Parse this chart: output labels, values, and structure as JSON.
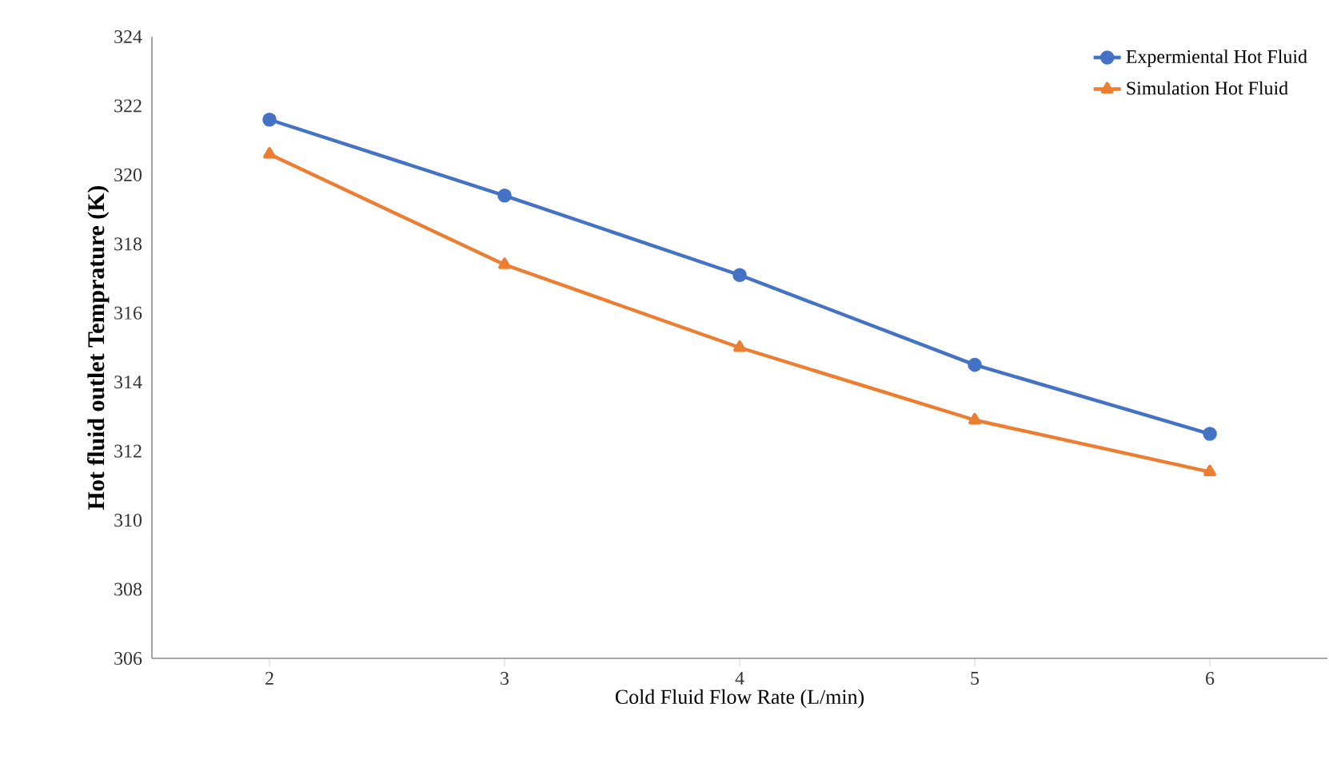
{
  "chart_data": {
    "type": "line",
    "xlabel": "Cold Fluid Flow Rate (L/min)",
    "ylabel": "Hot fluid outlet  Temprature  (K)",
    "x": [
      2,
      3,
      4,
      5,
      6
    ],
    "xlim": [
      1.5,
      6.5
    ],
    "xticks": [
      2,
      3,
      4,
      5,
      6
    ],
    "ylim": [
      306,
      324
    ],
    "yticks": [
      306,
      308,
      310,
      312,
      314,
      316,
      318,
      320,
      322,
      324
    ],
    "grid": false,
    "legend": "top right",
    "line_style": "solid",
    "series": [
      {
        "name": "Expermiental Hot Fluid",
        "color": "#4472c4",
        "marker": "circle",
        "values": [
          321.6,
          319.4,
          317.1,
          314.5,
          312.5
        ]
      },
      {
        "name": "Simulation Hot Fluid",
        "color": "#ed7d31",
        "marker": "triangle",
        "values": [
          320.6,
          317.4,
          315.0,
          312.9,
          311.4
        ]
      }
    ]
  }
}
